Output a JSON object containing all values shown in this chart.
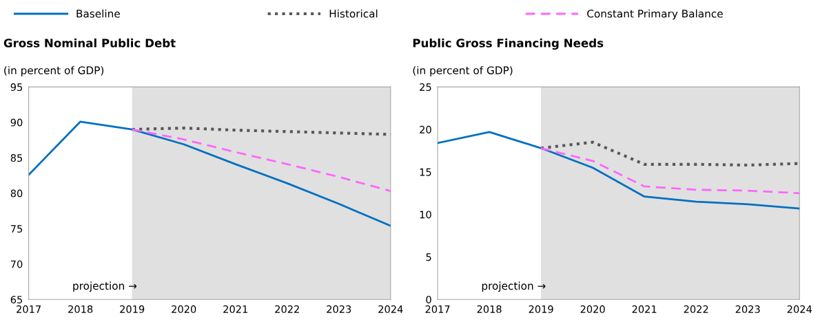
{
  "chart_data": [
    {
      "type": "line",
      "title": "Gross Nominal Public Debt",
      "subtitle": "(in percent of GDP)",
      "x": [
        2017,
        2018,
        2019,
        2020,
        2021,
        2022,
        2023,
        2024
      ],
      "xlim": [
        2017,
        2024
      ],
      "xticks": [
        2017,
        2018,
        2019,
        2020,
        2021,
        2022,
        2023,
        2024
      ],
      "ylim": [
        65,
        95
      ],
      "yticks": [
        65,
        70,
        75,
        80,
        85,
        90,
        95
      ],
      "grid": false,
      "legend": "top",
      "marker": "none",
      "series": [
        {
          "name": "Baseline",
          "color": "#0070c0",
          "line_style": "solid",
          "values": [
            82.6,
            90.1,
            89.0,
            86.9,
            84.1,
            81.4,
            78.5,
            75.4
          ]
        },
        {
          "name": "Historical",
          "color": "#595959",
          "line_style": "dotted",
          "values": [
            null,
            null,
            89.0,
            89.2,
            88.9,
            88.7,
            88.5,
            88.3
          ]
        },
        {
          "name": "Constant Primary Balance",
          "color": "#ff66ff",
          "line_style": "dashed",
          "values": [
            null,
            null,
            89.0,
            87.6,
            85.8,
            84.1,
            82.3,
            80.3
          ]
        }
      ],
      "bands": [
        {
          "axis": "x",
          "from": 2019,
          "to": 2024,
          "color": "#e0e0e0"
        }
      ],
      "annotations": [
        "projection →"
      ]
    },
    {
      "type": "line",
      "title": "Public Gross Financing Needs",
      "subtitle": "(in percent of GDP)",
      "x": [
        2017,
        2018,
        2019,
        2020,
        2021,
        2022,
        2023,
        2024
      ],
      "xlim": [
        2017,
        2024
      ],
      "xticks": [
        2017,
        2018,
        2019,
        2020,
        2021,
        2022,
        2023,
        2024
      ],
      "ylim": [
        0,
        25
      ],
      "yticks": [
        0,
        5,
        10,
        15,
        20,
        25
      ],
      "grid": false,
      "marker": "none",
      "series": [
        {
          "color": "#0070c0",
          "line_style": "solid",
          "values": [
            18.4,
            19.7,
            17.8,
            15.5,
            12.1,
            11.5,
            11.2,
            10.7
          ]
        },
        {
          "color": "#595959",
          "line_style": "dotted",
          "values": [
            null,
            null,
            17.8,
            18.5,
            15.9,
            15.9,
            15.8,
            16.0
          ]
        },
        {
          "color": "#ff66ff",
          "line_style": "dashed",
          "values": [
            null,
            null,
            17.8,
            16.3,
            13.3,
            12.9,
            12.8,
            12.5
          ]
        }
      ],
      "bands": [
        {
          "axis": "x",
          "from": 2019,
          "to": 2024,
          "color": "#e0e0e0"
        }
      ],
      "annotations": [
        "projection →"
      ]
    }
  ]
}
